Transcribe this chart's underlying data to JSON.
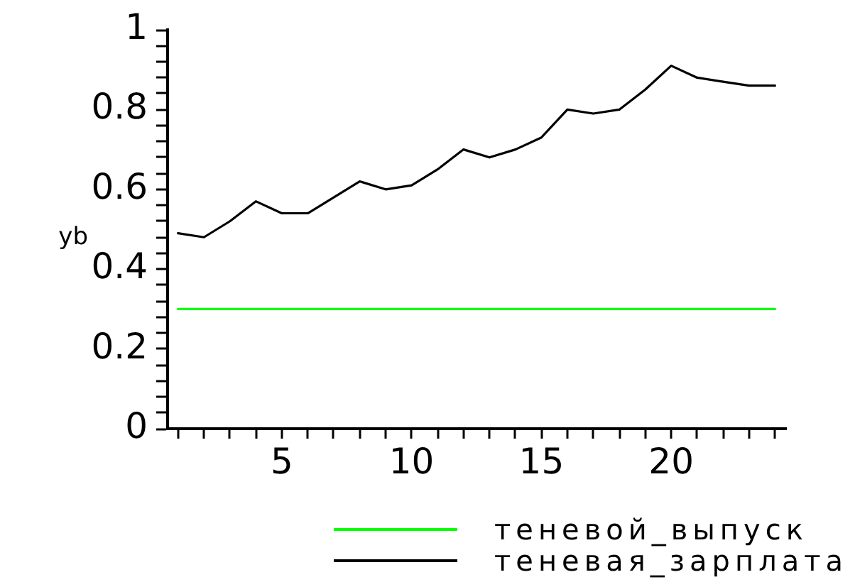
{
  "chart_data": {
    "type": "line",
    "ylabel": "yb",
    "x": [
      1,
      2,
      3,
      4,
      5,
      6,
      7,
      8,
      9,
      10,
      11,
      12,
      13,
      14,
      15,
      16,
      17,
      18,
      19,
      20,
      21,
      22,
      23,
      24
    ],
    "series": [
      {
        "name": "теневой_выпуск",
        "color": "#00ff00",
        "values": [
          0.3,
          0.3,
          0.3,
          0.3,
          0.3,
          0.3,
          0.3,
          0.3,
          0.3,
          0.3,
          0.3,
          0.3,
          0.3,
          0.3,
          0.3,
          0.3,
          0.3,
          0.3,
          0.3,
          0.3,
          0.3,
          0.3,
          0.3,
          0.3
        ]
      },
      {
        "name": "теневая_зарплата",
        "color": "#000000",
        "values": [
          0.49,
          0.48,
          0.52,
          0.57,
          0.54,
          0.54,
          0.58,
          0.62,
          0.6,
          0.61,
          0.65,
          0.7,
          0.68,
          0.7,
          0.73,
          0.8,
          0.79,
          0.8,
          0.85,
          0.91,
          0.88,
          0.87,
          0.86,
          0.86
        ]
      }
    ],
    "xlim": [
      0.6,
      24.4
    ],
    "xticks": [
      {
        "value": 1,
        "label": null
      },
      {
        "value": 2,
        "label": null
      },
      {
        "value": 3,
        "label": null
      },
      {
        "value": 4,
        "label": null
      },
      5,
      {
        "value": 6,
        "label": null
      },
      {
        "value": 7,
        "label": null
      },
      {
        "value": 8,
        "label": null
      },
      {
        "value": 9,
        "label": null
      },
      10,
      {
        "value": 11,
        "label": null
      },
      {
        "value": 12,
        "label": null
      },
      {
        "value": 13,
        "label": null
      },
      {
        "value": 14,
        "label": null
      },
      15,
      {
        "value": 16,
        "label": null
      },
      {
        "value": 17,
        "label": null
      },
      {
        "value": 18,
        "label": null
      },
      {
        "value": 19,
        "label": null
      },
      20,
      {
        "value": 21,
        "label": null
      },
      {
        "value": 22,
        "label": null
      },
      {
        "value": 23,
        "label": null
      },
      {
        "value": 24,
        "label": null
      }
    ],
    "ylim": [
      0,
      1
    ],
    "yticks": [
      0,
      {
        "value": 0.04,
        "label": null
      },
      {
        "value": 0.08,
        "label": null
      },
      {
        "value": 0.12,
        "label": null
      },
      {
        "value": 0.16,
        "label": null
      },
      0.2,
      {
        "value": 0.24,
        "label": null
      },
      {
        "value": 0.28,
        "label": null
      },
      {
        "value": 0.32,
        "label": null
      },
      {
        "value": 0.36,
        "label": null
      },
      0.4,
      {
        "value": 0.44,
        "label": null
      },
      {
        "value": 0.48,
        "label": null
      },
      {
        "value": 0.52,
        "label": null
      },
      {
        "value": 0.56,
        "label": null
      },
      0.6,
      {
        "value": 0.64,
        "label": null
      },
      {
        "value": 0.68,
        "label": null
      },
      {
        "value": 0.72,
        "label": null
      },
      {
        "value": 0.76,
        "label": null
      },
      0.8,
      {
        "value": 0.84,
        "label": null
      },
      {
        "value": 0.88,
        "label": null
      },
      {
        "value": 0.92,
        "label": null
      },
      {
        "value": 0.96,
        "label": null
      },
      1
    ],
    "legend": "bottom",
    "marker": "none"
  }
}
